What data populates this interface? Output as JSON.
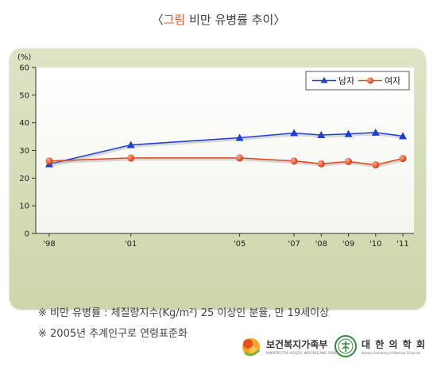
{
  "title": {
    "prefix": "〈",
    "highlight": "그림",
    "rest": " 비만 유병률 추이〉"
  },
  "notes": [
    "※ 비만 유병률 : 체질량지수(Kg/m²) 25 이상인 분율, 만 19세이상",
    "※ 2005년 추계인구로 연령표준화"
  ],
  "logos": {
    "ministry": {
      "name": "보건복지가족부",
      "tagline": "MINISTRY FOR HEALTH, WELFARE AND FAMILY AFFAIRS"
    },
    "academy": {
      "name": "대 한 의 학 회",
      "tagline": "Korean Academy of Medical Sciences"
    }
  },
  "colors": {
    "male": "#1f3fcf",
    "female": "#e0461e",
    "panel": "#d5ddb8",
    "title_highlight": "#e2582a"
  },
  "chart_data": {
    "type": "line",
    "unit_label": "(%)",
    "ylim": [
      0,
      60
    ],
    "yticks": [
      0,
      10,
      20,
      30,
      40,
      50,
      60
    ],
    "x": [
      "'98",
      "'01",
      "'05",
      "'07",
      "'08",
      "'09",
      "'10",
      "'11"
    ],
    "x_years": [
      1998,
      2001,
      2005,
      2007,
      2008,
      2009,
      2010,
      2011
    ],
    "legend_position": "top-right",
    "grid": false,
    "series": [
      {
        "name": "남자",
        "color": "#1f3fcf",
        "marker": "triangle",
        "values": [
          25.1,
          32.0,
          34.6,
          36.3,
          35.6,
          36.0,
          36.5,
          35.2
        ]
      },
      {
        "name": "여자",
        "color": "#e0461e",
        "marker": "circle",
        "values": [
          26.2,
          27.3,
          27.3,
          26.2,
          25.2,
          26.0,
          24.8,
          27.1
        ]
      }
    ]
  }
}
